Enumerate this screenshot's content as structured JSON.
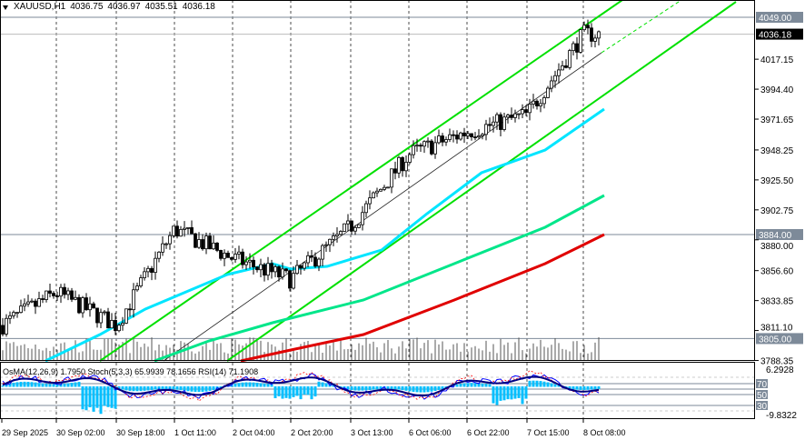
{
  "header": {
    "symbol": "XAUUSD,H1",
    "open": "4036.75",
    "high": "4036.97",
    "low": "4035.51",
    "close": "4036.18"
  },
  "indicator_label": "OsMA(12,26,9) 1.7950  Stoch(5,3,3) 65.9939 78.1656  RSI(14) 71.1908",
  "price_axis": [
    "4017.15",
    "3994.40",
    "3971.65",
    "3948.25",
    "3925.50",
    "3902.75",
    "3880.00",
    "3856.60",
    "3833.85",
    "3811.10",
    "3788.35"
  ],
  "price_tags": {
    "level_high": "4049.00",
    "current": "4036.18",
    "level_mid": "3884.00",
    "level_low": "3805.00"
  },
  "indicator_axis": {
    "top": "6.2928",
    "bottom": "-9.8322",
    "levels": [
      "70",
      "50",
      "30"
    ]
  },
  "colors": {
    "bull": "#000000",
    "channel": "#00e000",
    "ema_fast": "#00e5ff",
    "ema_mid": "#00e68a",
    "ema_slow": "#e00000",
    "osma": "#00bfff",
    "tag": "#7d8a99"
  },
  "chart_data": {
    "type": "candlestick",
    "title": "XAUUSD,H1",
    "x": [
      "29 Sep 2025",
      "30 Sep 02:00",
      "30 Sep 18:00",
      "1 Oct 11:00",
      "2 Oct 04:00",
      "2 Oct 20:00",
      "3 Oct 13:00",
      "6 Oct 06:00",
      "6 Oct 22:00",
      "7 Oct 15:00",
      "8 Oct 08:00"
    ],
    "close": [
      3815,
      3840,
      3815,
      3888,
      3866,
      3850,
      3890,
      3945,
      3962,
      3975,
      4036.18
    ],
    "ylim": [
      3788.35,
      4049
    ],
    "horizontal_levels": [
      4049.0,
      3884.0,
      3805.0
    ],
    "grid": true
  }
}
